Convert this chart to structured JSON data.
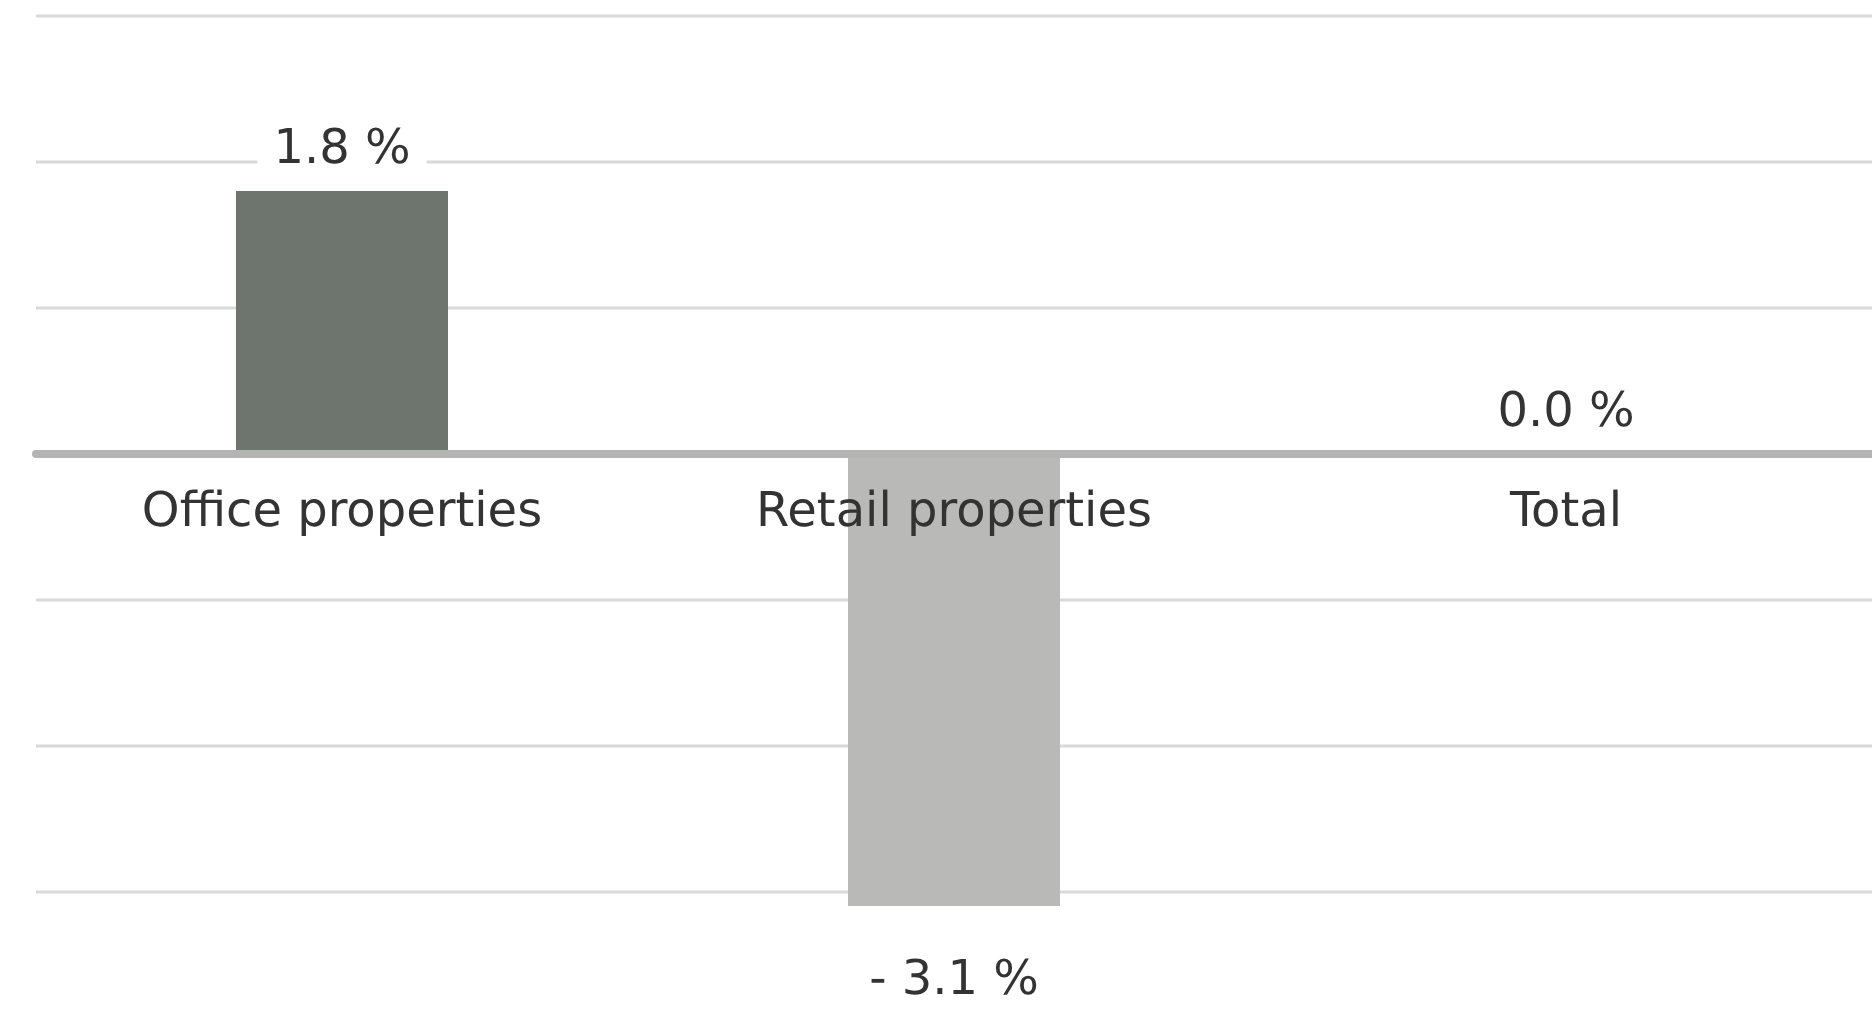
{
  "chart_data": {
    "type": "bar",
    "categories": [
      "Office properties",
      "Retail properties",
      "Total"
    ],
    "values": [
      1.8,
      -3.1,
      0.0
    ],
    "colors": [
      "#6e756f",
      "#b9b9b7",
      "#b9b9b7"
    ],
    "value_labels": [
      "1.8 %",
      "- 3.1 %",
      "0.0 %"
    ],
    "yticks": [
      {
        "value": -3,
        "label": null
      },
      {
        "value": -2,
        "label": null
      },
      {
        "value": -1,
        "label": null
      },
      {
        "value": 0,
        "label": null
      },
      {
        "value": 1,
        "label": null
      },
      {
        "value": 2,
        "label": null
      },
      {
        "value": 3,
        "label": null
      }
    ],
    "grid": "y",
    "tick_labels": "x"
  }
}
